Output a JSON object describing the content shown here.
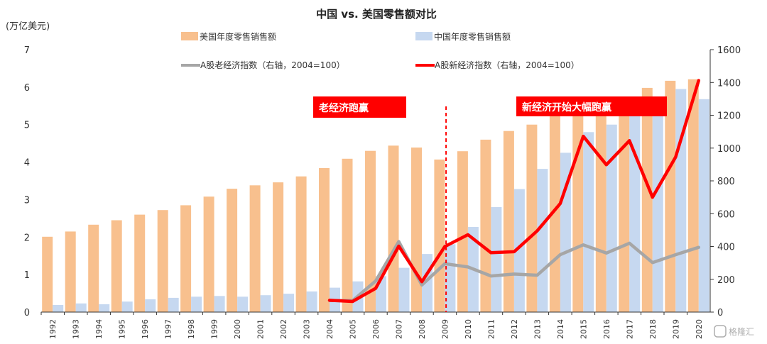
{
  "chart_data": {
    "type": "bar",
    "title": "中国 vs. 美国零售额对比",
    "y_left_unit": "(万亿美元)",
    "y_left_ticks": [
      "0",
      "1",
      "2",
      "3",
      "4",
      "5",
      "6",
      "7"
    ],
    "y_right_ticks": [
      "0",
      "200",
      "400",
      "600",
      "800",
      "1000",
      "1200",
      "1400",
      "1600"
    ],
    "ylim_left": [
      0,
      7
    ],
    "ylim_right": [
      0,
      1600
    ],
    "categories": [
      "1992",
      "1993",
      "1994",
      "1995",
      "1996",
      "1997",
      "1998",
      "1999",
      "2000",
      "2001",
      "2002",
      "2003",
      "2004",
      "2005",
      "2006",
      "2007",
      "2008",
      "2009",
      "2010",
      "2011",
      "2012",
      "2013",
      "2014",
      "2015",
      "2016",
      "2017",
      "2018",
      "2019",
      "2020"
    ],
    "series": [
      {
        "name": "美国年度零售销售额",
        "kind": "bar",
        "axis": "left",
        "color": "#f8c08e",
        "values": [
          2.01,
          2.15,
          2.33,
          2.45,
          2.6,
          2.72,
          2.85,
          3.08,
          3.29,
          3.38,
          3.46,
          3.62,
          3.84,
          4.09,
          4.3,
          4.44,
          4.39,
          4.07,
          4.29,
          4.6,
          4.83,
          5.0,
          5.25,
          5.35,
          5.5,
          5.7,
          5.98,
          6.17,
          6.21
        ]
      },
      {
        "name": "中国年度零售销售额",
        "kind": "bar",
        "axis": "left",
        "color": "#c6d8f0",
        "values": [
          0.19,
          0.23,
          0.21,
          0.28,
          0.34,
          0.38,
          0.41,
          0.43,
          0.41,
          0.45,
          0.49,
          0.55,
          0.65,
          0.82,
          0.96,
          1.18,
          1.55,
          1.81,
          2.27,
          2.8,
          3.28,
          3.82,
          4.25,
          4.8,
          5.0,
          5.25,
          5.5,
          5.95,
          5.68
        ]
      },
      {
        "name": "A股老经济指数(右轴,2004=100)",
        "kind": "line",
        "axis": "right",
        "color": "#a6a6a6",
        "values": [
          null,
          null,
          null,
          null,
          null,
          null,
          null,
          null,
          null,
          null,
          null,
          null,
          70,
          70,
          190,
          430,
          165,
          295,
          275,
          220,
          232,
          225,
          350,
          410,
          360,
          420,
          302,
          350,
          395
        ]
      },
      {
        "name": "A股新经济指数(右轴,2004=100)",
        "kind": "line",
        "axis": "right",
        "color": "#ff0000",
        "values": [
          null,
          null,
          null,
          null,
          null,
          null,
          null,
          null,
          null,
          null,
          null,
          null,
          72,
          65,
          145,
          402,
          185,
          400,
          472,
          362,
          368,
          495,
          662,
          1072,
          898,
          1045,
          700,
          945,
          1412
        ]
      }
    ],
    "legend": {
      "us_bar": "美国年度零售销售额",
      "cn_bar": "中国年度零售销售额",
      "old_line": "A股老经济指数（右轴，2004=100）",
      "new_line": "A股新经济指数（右轴，2004=100）"
    },
    "annotations": [
      {
        "text": "老经济跑赢",
        "color": "#ff0000"
      },
      {
        "text": "新经济开始大幅跑赢",
        "color": "#ff0000"
      }
    ],
    "divider_after": "2009",
    "watermark": "格隆汇",
    "grid": false,
    "legend_position": "top"
  }
}
